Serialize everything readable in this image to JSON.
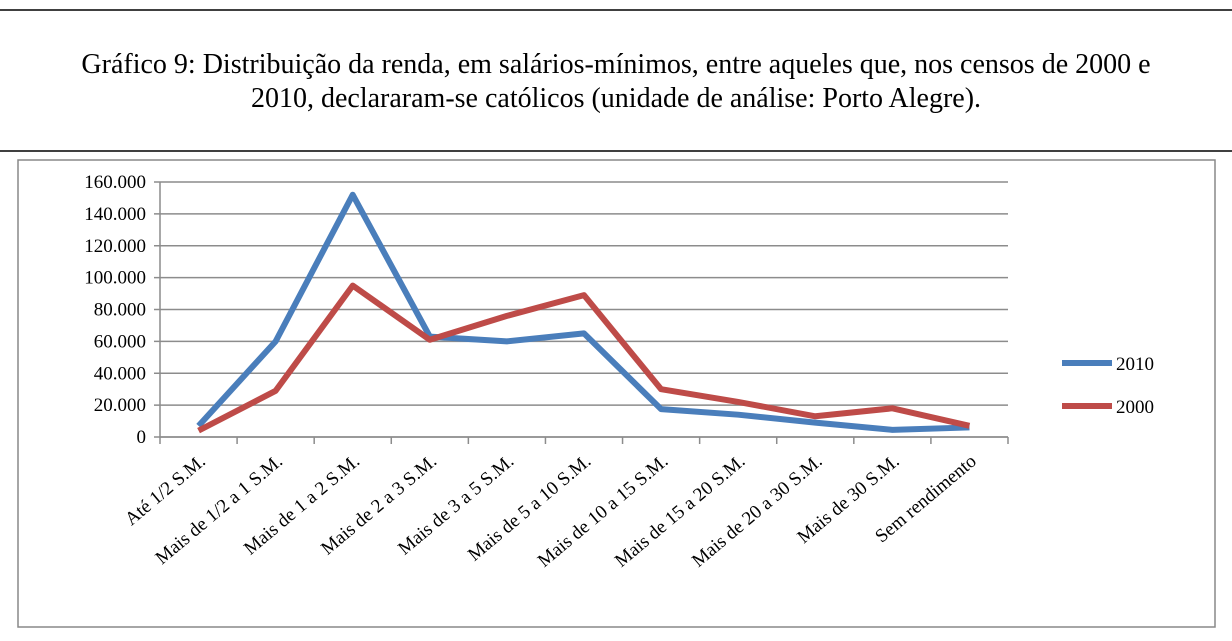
{
  "chart_data": {
    "type": "line",
    "title": "Gráfico 9: Distribuição da renda, em salários-mínimos, entre aqueles que, nos censos de 2000 e 2010, declararam-se católicos (unidade de análise: Porto Alegre).",
    "categories": [
      "Até 1/2 S.M.",
      "Mais de 1/2 a 1 S.M.",
      "Mais de 1 a 2 S.M.",
      "Mais de 2 a 3 S.M.",
      "Mais de 3 a 5 S.M.",
      "Mais de 5 a 10 S.M.",
      "Mais de 10 a 15 S.M.",
      "Mais de 15 a 20 S.M.",
      "Mais de 20 a 30 S.M.",
      "Mais de 30 S.M.",
      "Sem rendimento"
    ],
    "series": [
      {
        "name": "2010",
        "color": "#4a7ebb",
        "values": [
          7000,
          60000,
          152000,
          63000,
          60000,
          65000,
          17500,
          14000,
          9000,
          4500,
          6000
        ]
      },
      {
        "name": "2000",
        "color": "#be4b48",
        "values": [
          4000,
          29000,
          95000,
          61000,
          76000,
          89000,
          30000,
          22000,
          13000,
          18000,
          7000
        ]
      }
    ],
    "ylim": [
      0,
      160000
    ],
    "yticks": [
      0,
      {
        "value": 20000,
        "label": "20.000"
      },
      {
        "value": 40000,
        "label": "40.000"
      },
      {
        "value": 60000,
        "label": "60.000"
      },
      {
        "value": 80000,
        "label": "80.000"
      },
      {
        "value": 100000,
        "label": "100.000"
      },
      {
        "value": 120000,
        "label": "120.000"
      },
      {
        "value": 140000,
        "label": "140.000"
      },
      {
        "value": 160000,
        "label": "160.000"
      }
    ],
    "grid": true,
    "legend": "right"
  }
}
